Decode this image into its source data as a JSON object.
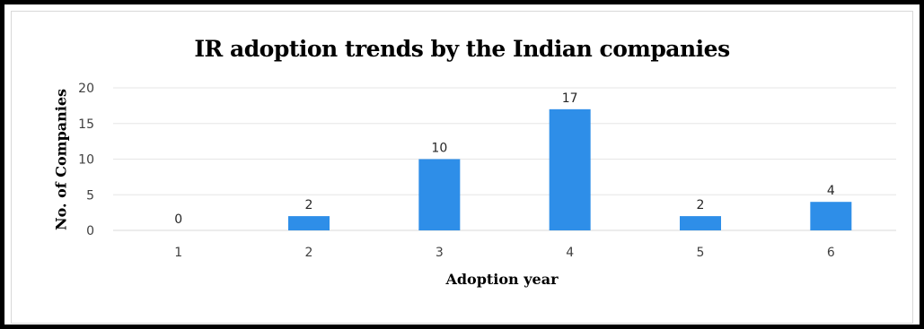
{
  "chart_data": {
    "type": "bar",
    "title": "IR adoption trends by the Indian companies",
    "xlabel": "Adoption  year",
    "ylabel": "No. of Companies",
    "categories": [
      "1",
      "2",
      "3",
      "4",
      "5",
      "6"
    ],
    "values": [
      0,
      2,
      10,
      17,
      2,
      4
    ],
    "ylim": [
      0,
      20
    ],
    "yticks": [
      "0",
      "5",
      "10",
      "15",
      "20"
    ],
    "grid": true,
    "legend": "none",
    "bar_color": "#2e8ee8",
    "gridline_color": "#e6e6e6",
    "axis_color": "#d9d9d9"
  }
}
